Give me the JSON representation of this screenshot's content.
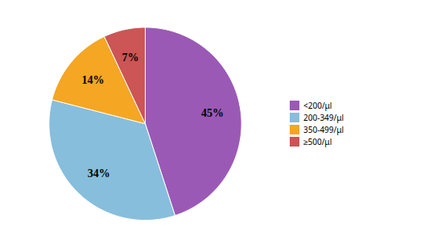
{
  "chart_data": {
    "type": "pie",
    "categories": [
      "<200/μl",
      "200-349/μl",
      "350-499/μl",
      "≥500/μl"
    ],
    "values": [
      45,
      34,
      14,
      7
    ],
    "value_labels": [
      "45%",
      "34%",
      "14%",
      "7%"
    ],
    "colors": [
      "#9B59B6",
      "#87BEDC",
      "#F5A623",
      "#CC5555"
    ],
    "data_labels": true,
    "legend": "right"
  }
}
